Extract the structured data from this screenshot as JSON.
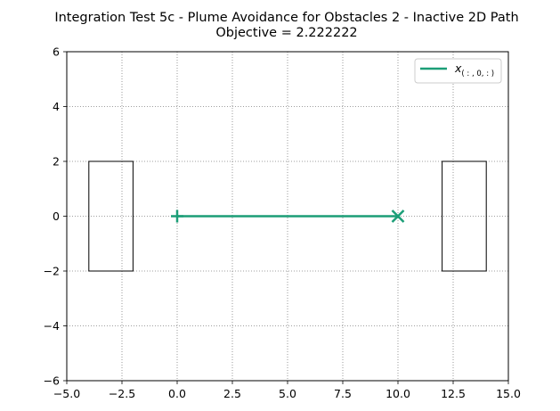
{
  "chart_data": {
    "type": "line",
    "title": "Integration Test 5c - Plume Avoidance for Obstacles 2 - Inactive 2D Path",
    "subtitle": "Objective = 2.222222",
    "xlabel": "",
    "ylabel": "",
    "xlim": [
      -5.0,
      15.0
    ],
    "ylim": [
      -6,
      6
    ],
    "x_ticks": [
      "−5.0",
      "−2.5",
      "0.0",
      "2.5",
      "5.0",
      "7.5",
      "10.0",
      "12.5",
      "15.0"
    ],
    "x_tick_values": [
      -5.0,
      -2.5,
      0.0,
      2.5,
      5.0,
      7.5,
      10.0,
      12.5,
      15.0
    ],
    "y_ticks": [
      "−6",
      "−4",
      "−2",
      "0",
      "2",
      "4",
      "6"
    ],
    "y_tick_values": [
      -6,
      -4,
      -2,
      0,
      2,
      4,
      6
    ],
    "grid": true,
    "legend_position": "top-right",
    "series": [
      {
        "name_base": "x",
        "name_subscript": "( : , 0, : )",
        "color": "#1b9e77",
        "x": [
          0,
          10
        ],
        "y": [
          0,
          0
        ],
        "start_marker": "plus",
        "end_marker": "x"
      }
    ],
    "obstacles": [
      {
        "x": [
          -4,
          -2
        ],
        "y": [
          -2,
          2
        ]
      },
      {
        "x": [
          12,
          14
        ],
        "y": [
          -2,
          2
        ]
      }
    ]
  }
}
